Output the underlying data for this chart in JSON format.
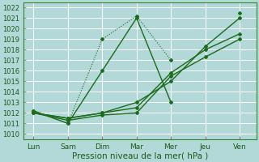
{
  "x_labels": [
    "Lun",
    "Sam",
    "Dim",
    "Mar",
    "Mer",
    "Jeu",
    "Ven"
  ],
  "x_positions": [
    0,
    1,
    2,
    3,
    4,
    5,
    6
  ],
  "series": [
    {
      "y": [
        1012.2,
        1011.0,
        1019.0,
        1021.2,
        1017.0,
        null,
        null
      ],
      "color": "#1a6b1a",
      "linewidth": 0.8,
      "linestyle": ":",
      "marker": "D",
      "markersize": 2.0
    },
    {
      "y": [
        1012.2,
        1011.0,
        1016.0,
        1021.0,
        1013.0,
        null,
        1021.5
      ],
      "color": "#1a6b1a",
      "linewidth": 1.0,
      "linestyle": "-",
      "marker": "D",
      "markersize": 2.0
    },
    {
      "y": [
        1012.0,
        1011.3,
        1011.8,
        1012.0,
        1015.5,
        1017.3,
        1019.0
      ],
      "color": "#1a6b1a",
      "linewidth": 1.0,
      "linestyle": "-",
      "marker": "D",
      "markersize": 2.0
    },
    {
      "y": [
        1012.0,
        1011.5,
        1012.0,
        1012.5,
        1015.8,
        1018.0,
        1019.5
      ],
      "color": "#1a6b1a",
      "linewidth": 1.0,
      "linestyle": "-",
      "marker": "D",
      "markersize": 2.0
    },
    {
      "y": [
        1012.0,
        1011.5,
        1012.0,
        1013.0,
        1015.0,
        1018.3,
        1021.0
      ],
      "color": "#1a6b1a",
      "linewidth": 1.0,
      "linestyle": "-",
      "marker": "D",
      "markersize": 2.0
    }
  ],
  "ylim": [
    1009.5,
    1022.5
  ],
  "yticks": [
    1010,
    1011,
    1012,
    1013,
    1014,
    1015,
    1016,
    1017,
    1018,
    1019,
    1020,
    1021,
    1022
  ],
  "xlabel": "Pression niveau de la mer( hPa )",
  "background_color": "#b2d8d8",
  "grid_color": "#ffffff",
  "spine_color": "#2d8a2d",
  "label_color": "#1a5c1a",
  "tick_color": "#c06060"
}
